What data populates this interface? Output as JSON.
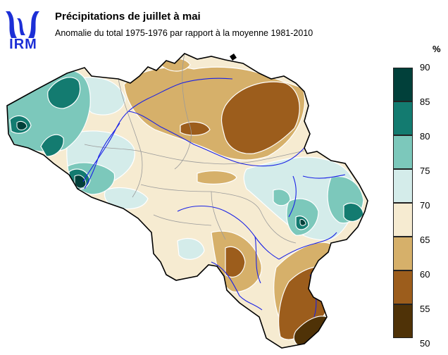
{
  "header": {
    "logo_text": "IRM",
    "title": "Précipitations de juillet à mai",
    "subtitle": "Anomalie du total 1975-1976 par rapport à la moyenne 1981-2010"
  },
  "legend": {
    "unit": "%",
    "ticks": [
      "90",
      "85",
      "80",
      "75",
      "70",
      "65",
      "60",
      "55",
      "50"
    ],
    "classes": [
      {
        "range": "85-90",
        "color": "#01403a"
      },
      {
        "range": "80-85",
        "color": "#137b70"
      },
      {
        "range": "75-80",
        "color": "#7cc8bb"
      },
      {
        "range": "70-75",
        "color": "#d4ecea"
      },
      {
        "range": "65-70",
        "color": "#f6ebd1"
      },
      {
        "range": "60-65",
        "color": "#d6b06a"
      },
      {
        "range": "55-60",
        "color": "#9c5d1c"
      },
      {
        "range": "50-55",
        "color": "#4f3207"
      }
    ]
  },
  "colors": {
    "border": "#000000",
    "rivers": "#1a22e6",
    "provinces": "#9a9a9a",
    "contours": "#ffffff"
  }
}
